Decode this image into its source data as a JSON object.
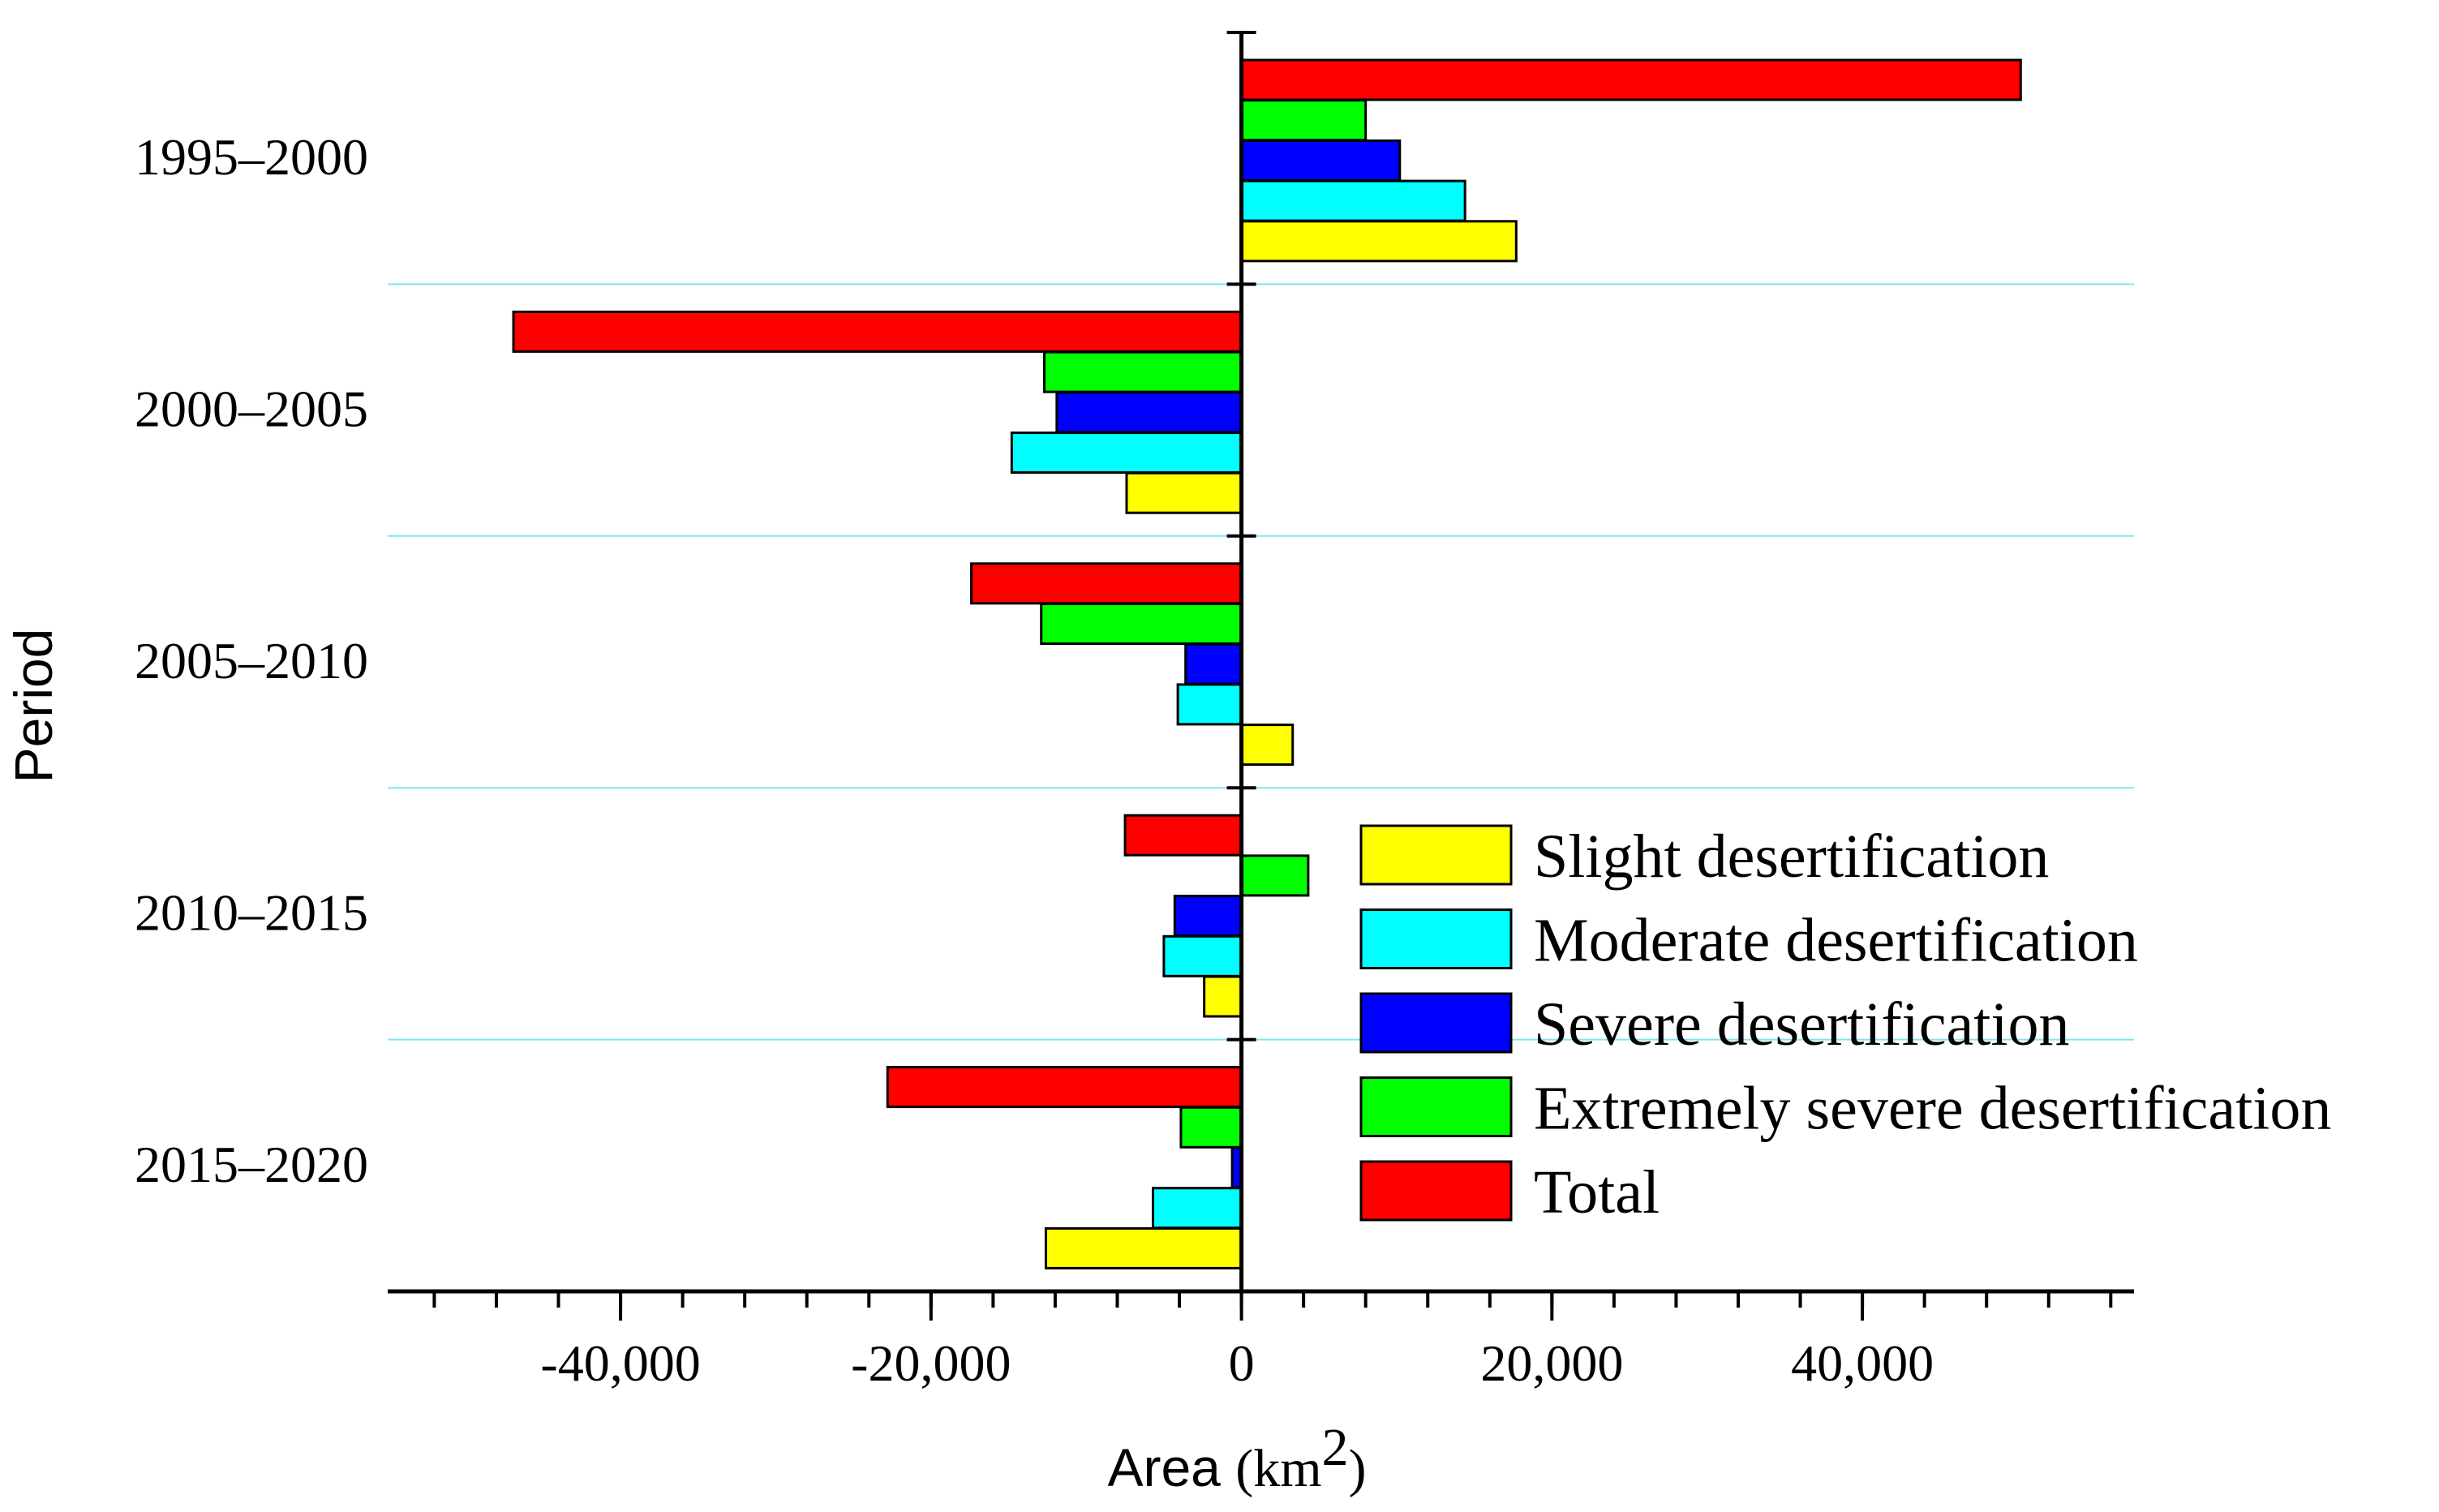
{
  "chart_data": {
    "type": "bar",
    "orientation": "horizontal",
    "title": "",
    "categories": [
      "1995–2000",
      "2000–2005",
      "2005–2010",
      "2010–2015",
      "2015–2020"
    ],
    "series": [
      {
        "name": "Slight desertification",
        "color": "#ffff00",
        "values": [
          17700,
          -7400,
          3300,
          -2400,
          -12600
        ]
      },
      {
        "name": "Moderate desertification",
        "color": "#00ffff",
        "values": [
          14400,
          -14800,
          -4100,
          -5000,
          -5700
        ]
      },
      {
        "name": "Severe desertification",
        "color": "#0000ff",
        "values": [
          10200,
          -11900,
          -3600,
          -4300,
          -600
        ]
      },
      {
        "name": "Extremely severe desertification",
        "color": "#00ff00",
        "values": [
          8000,
          -12700,
          -12900,
          4300,
          -3900
        ]
      },
      {
        "name": "Total",
        "color": "#ff0000",
        "values": [
          50200,
          -46900,
          -17400,
          -7500,
          -22800
        ]
      }
    ],
    "xlabel": {
      "prefix": "Area ",
      "unit": "(km",
      "superscript": "2",
      "suffix": ")"
    },
    "ylabel": "Period",
    "xlim": [
      -55000,
      57500
    ],
    "xticks": [
      -40000,
      -20000,
      0,
      20000,
      40000
    ],
    "xtick_labels": [
      "-40,000",
      "-20,000",
      "0",
      "20,000",
      "40,000"
    ],
    "minor_tick_step": 4000,
    "grid": "horizontal separators between periods",
    "legend_position": "bottom-right"
  }
}
